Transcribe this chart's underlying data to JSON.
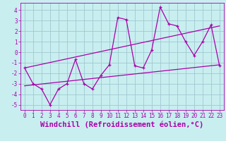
{
  "xlabel": "Windchill (Refroidissement éolien,°C)",
  "bg_color": "#c8eef0",
  "grid_color": "#a0c8d0",
  "line_color": "#aa00aa",
  "xlim": [
    -0.5,
    23.5
  ],
  "ylim": [
    -5.5,
    4.7
  ],
  "xticks": [
    0,
    1,
    2,
    3,
    4,
    5,
    6,
    7,
    8,
    9,
    10,
    11,
    12,
    13,
    14,
    15,
    16,
    17,
    18,
    19,
    20,
    21,
    22,
    23
  ],
  "yticks": [
    -5,
    -4,
    -3,
    -2,
    -1,
    0,
    1,
    2,
    3,
    4
  ],
  "line1_x": [
    0,
    1,
    2,
    3,
    4,
    5,
    6,
    7,
    8,
    9,
    10,
    11,
    12,
    13,
    14,
    15,
    16,
    17,
    18,
    19,
    20,
    21,
    22,
    23
  ],
  "line1_y": [
    -1.5,
    -3.0,
    -3.5,
    -5.0,
    -3.5,
    -3.0,
    -0.7,
    -3.0,
    -3.5,
    -2.2,
    -1.2,
    3.3,
    3.1,
    -1.3,
    -1.5,
    0.2,
    4.3,
    2.7,
    2.5,
    1.0,
    -0.3,
    1.0,
    2.6,
    -1.3
  ],
  "line2_x": [
    0,
    23
  ],
  "line2_y": [
    -3.2,
    -1.2
  ],
  "line3_x": [
    0,
    23
  ],
  "line3_y": [
    -1.5,
    2.5
  ],
  "font_name": "monospace",
  "tick_fontsize": 5.5,
  "label_fontsize": 7.5
}
